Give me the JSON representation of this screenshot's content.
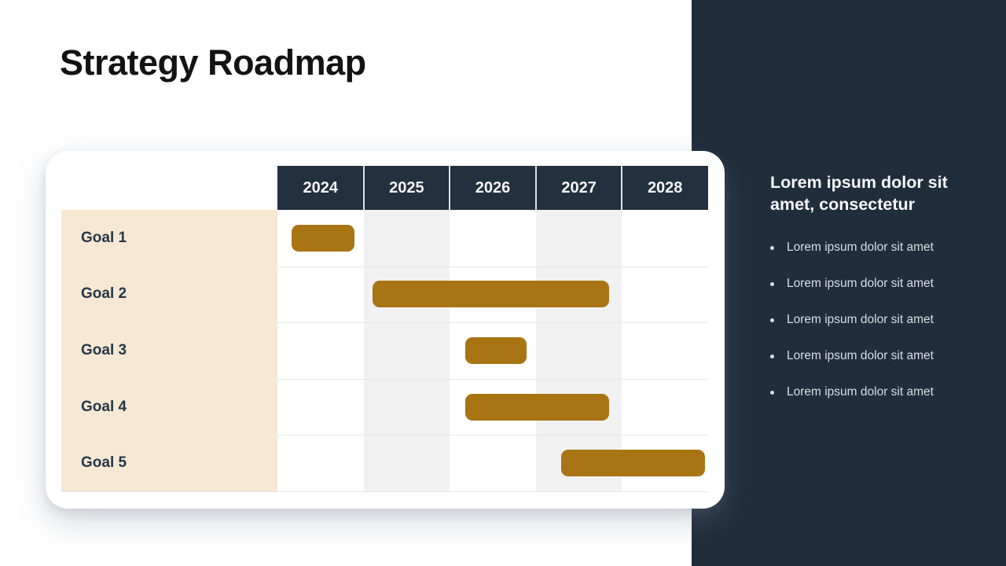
{
  "slide": {
    "title": "Strategy Roadmap"
  },
  "chart_data": {
    "type": "gantt",
    "title": "Strategy Roadmap",
    "columns": [
      "2024",
      "2025",
      "2026",
      "2027",
      "2028"
    ],
    "axis_origin": 2024,
    "axis_end": 2029,
    "striped_columns": [
      "2025",
      "2027"
    ],
    "rows": [
      {
        "label": "Goal 1",
        "start": 2024.16,
        "end": 2024.89
      },
      {
        "label": "Goal 2",
        "start": 2025.1,
        "end": 2027.85
      },
      {
        "label": "Goal 3",
        "start": 2026.18,
        "end": 2026.89
      },
      {
        "label": "Goal 4",
        "start": 2026.18,
        "end": 2027.85
      },
      {
        "label": "Goal 5",
        "start": 2027.29,
        "end": 2028.96
      }
    ],
    "bar_color": "#A97414",
    "header_color": "#22303F",
    "label_column_color": "#F6E8D2",
    "stripe_color": "#F1F1F2",
    "legend_position": "none",
    "grid": "row-separators"
  },
  "side_panel": {
    "heading": "Lorem ipsum dolor sit amet, consectetur",
    "bullets": [
      "Lorem ipsum dolor sit amet",
      "Lorem ipsum dolor sit amet",
      "Lorem ipsum dolor sit amet",
      "Lorem ipsum dolor sit amet",
      "Lorem ipsum dolor sit amet"
    ],
    "background_color": "#1F2D3C"
  },
  "colors": {
    "page_background": "#FFFFFF",
    "title_text": "#131313",
    "goal_label_text": "#26374B",
    "year_header_text": "#F3F5F7",
    "bullet_text": "#D9DEE3",
    "row_separator": "#E7E7E7"
  }
}
